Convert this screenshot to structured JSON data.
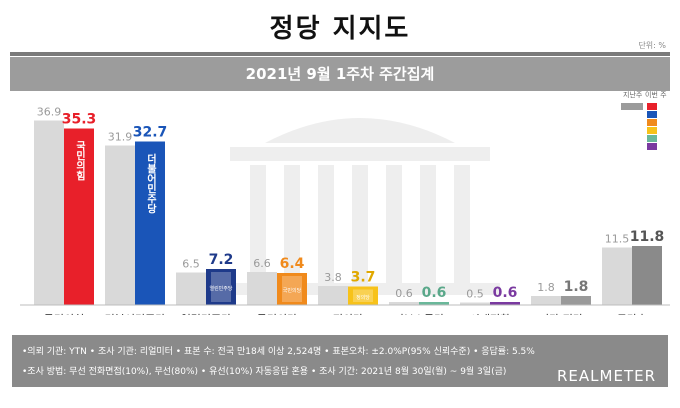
{
  "header": {
    "title": "정당 지지도",
    "unit": "단위: %",
    "subtitle": "2021년 9월 1주차 주간집계"
  },
  "legend": {
    "prev_label": "지난주",
    "curr_label": "이번 주",
    "curr_colors": [
      "#e8202a",
      "#1a55b8",
      "#f08a1c",
      "#f7c21a",
      "#6ab89a",
      "#7a3aa0"
    ]
  },
  "chart_data": {
    "type": "bar",
    "categories": [
      "국민의힘",
      "더불어민주당",
      "열린민주당",
      "국민의당",
      "정의당",
      "기본소득당",
      "시대전환",
      "기타 정당",
      "무당층"
    ],
    "series": [
      {
        "name": "지난주",
        "values": [
          36.9,
          31.9,
          6.5,
          6.6,
          3.8,
          0.6,
          0.5,
          1.8,
          11.5
        ]
      },
      {
        "name": "이번 주",
        "values": [
          35.3,
          32.7,
          7.2,
          6.4,
          3.7,
          0.6,
          0.6,
          1.8,
          11.8
        ]
      }
    ],
    "current_colors": [
      "#e8202a",
      "#1a55b8",
      "#1e3a8a",
      "#f08a1c",
      "#f7c21a",
      "#6ab89a",
      "#7a3aa0",
      "#9a9a9a",
      "#8a8a8a"
    ],
    "current_label_colors": [
      "#e8202a",
      "#1a55b8",
      "#1e3a8a",
      "#f08a1c",
      "#e0a800",
      "#5aa88a",
      "#7a3aa0",
      "#777777",
      "#555555"
    ],
    "party_logos": [
      "국민의힘",
      "더불어민주당",
      "열린민주당",
      "국민의당",
      "정의당",
      "",
      "",
      "",
      ""
    ],
    "ylim": [
      0,
      40
    ]
  },
  "footer": {
    "line1": "•의뢰 기관: YTN • 조사 기관: 리얼미터 • 표본 수: 전국 만18세 이상 2,524명 • 표본오차: ±2.0%P(95% 신뢰수준) • 응답률: 5.5%",
    "line2": "•조사 방법: 무선 전화면접(10%), 무선(80%) • 유선(10%) 자동응답 혼용 • 조사 기간: 2021년 8월 30일(월) ~ 9월 3일(금)",
    "brand": "REALMETER"
  }
}
